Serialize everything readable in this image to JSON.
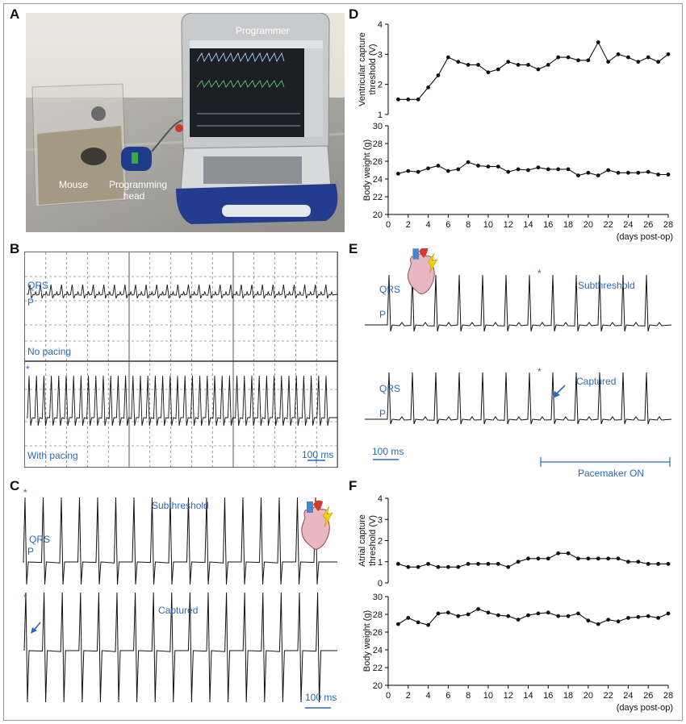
{
  "panels": {
    "a": {
      "letter": "A",
      "labels": {
        "programmer": "Programmer",
        "mouse": "Mouse",
        "programming_head": "Programming head"
      }
    },
    "b": {
      "letter": "B",
      "labels": {
        "qrs": "QRS",
        "p": "P",
        "no_pacing": "No pacing",
        "star": "*",
        "with_pacing": "With pacing",
        "scale": "100 ms"
      }
    },
    "c": {
      "letter": "C",
      "labels": {
        "star1": "*",
        "qrs": "QRS",
        "p": "P",
        "subthreshold": "Subthreshold",
        "star2": "*",
        "captured": "Captured",
        "scale": "100 ms"
      }
    },
    "d": {
      "letter": "D"
    },
    "e": {
      "letter": "E",
      "labels": {
        "qrs1": "QRS",
        "p1": "P",
        "star1": "*",
        "subthreshold": "Subthreshold",
        "qrs2": "QRS",
        "p2": "P",
        "star2": "*",
        "captured": "Captured",
        "scale": "100 ms",
        "pacemaker": "Pacemaker ON"
      }
    },
    "f": {
      "letter": "F"
    }
  },
  "colors": {
    "accent_blue": "#2a6ab8",
    "line": "#111111",
    "lightning": "#f5d400",
    "heart": "#e87a6a"
  },
  "chart_data": [
    {
      "id": "D-top",
      "type": "line",
      "ylabel": "Ventricular capture threshold (V)",
      "x": [
        1,
        2,
        3,
        4,
        5,
        6,
        7,
        8,
        9,
        10,
        11,
        12,
        13,
        14,
        15,
        16,
        17,
        18,
        19,
        20,
        21,
        22,
        23,
        24,
        25,
        26,
        27,
        28
      ],
      "values": [
        1.5,
        1.5,
        1.5,
        1.9,
        2.3,
        2.9,
        2.75,
        2.65,
        2.65,
        2.4,
        2.5,
        2.75,
        2.65,
        2.65,
        2.5,
        2.65,
        2.9,
        2.9,
        2.8,
        2.8,
        3.4,
        2.75,
        3.0,
        2.9,
        2.75,
        2.9,
        2.75,
        3.0
      ],
      "ylim": [
        1,
        4
      ],
      "yticks": [
        1,
        2,
        3,
        4
      ]
    },
    {
      "id": "D-bottom",
      "type": "line",
      "ylabel": "Body weight (g)",
      "xlabel": "(days post-op)",
      "x": [
        1,
        2,
        3,
        4,
        5,
        6,
        7,
        8,
        9,
        10,
        11,
        12,
        13,
        14,
        15,
        16,
        17,
        18,
        19,
        20,
        21,
        22,
        23,
        24,
        25,
        26,
        27,
        28
      ],
      "values": [
        24.6,
        24.9,
        24.8,
        25.2,
        25.5,
        24.9,
        25.1,
        25.9,
        25.5,
        25.4,
        25.4,
        24.8,
        25.1,
        25.0,
        25.3,
        25.1,
        25.1,
        25.1,
        24.4,
        24.7,
        24.4,
        25.0,
        24.7,
        24.7,
        24.7,
        24.8,
        24.5,
        24.5
      ],
      "ylim": [
        20,
        30
      ],
      "yticks": [
        20,
        22,
        24,
        26,
        28,
        30
      ],
      "xticks": [
        0,
        2,
        4,
        6,
        8,
        10,
        12,
        14,
        16,
        18,
        20,
        22,
        24,
        26,
        28
      ]
    },
    {
      "id": "F-top",
      "type": "line",
      "ylabel": "Atrial capture threshold (V)",
      "x": [
        1,
        2,
        3,
        4,
        5,
        6,
        7,
        8,
        9,
        10,
        11,
        12,
        13,
        14,
        15,
        16,
        17,
        18,
        19,
        20,
        21,
        22,
        23,
        24,
        25,
        26,
        27,
        28
      ],
      "values": [
        0.9,
        0.75,
        0.75,
        0.9,
        0.75,
        0.75,
        0.75,
        0.9,
        0.9,
        0.9,
        0.9,
        0.75,
        1.0,
        1.15,
        1.15,
        1.15,
        1.4,
        1.4,
        1.15,
        1.15,
        1.15,
        1.15,
        1.15,
        1.0,
        1.0,
        0.9,
        0.9,
        0.9
      ],
      "ylim": [
        0,
        4
      ],
      "yticks": [
        0,
        1,
        2,
        3,
        4
      ]
    },
    {
      "id": "F-bottom",
      "type": "line",
      "ylabel": "Body weight (g)",
      "xlabel": "(days post-op)",
      "x": [
        1,
        2,
        3,
        4,
        5,
        6,
        7,
        8,
        9,
        10,
        11,
        12,
        13,
        14,
        15,
        16,
        17,
        18,
        19,
        20,
        21,
        22,
        23,
        24,
        25,
        26,
        27,
        28
      ],
      "values": [
        26.9,
        27.6,
        27.1,
        26.8,
        28.1,
        28.2,
        27.8,
        28.0,
        28.6,
        28.2,
        27.9,
        27.8,
        27.4,
        27.9,
        28.1,
        28.2,
        27.8,
        27.8,
        28.1,
        27.3,
        26.9,
        27.4,
        27.2,
        27.6,
        27.7,
        27.8,
        27.6,
        28.1
      ],
      "ylim": [
        20,
        30
      ],
      "yticks": [
        20,
        22,
        24,
        26,
        28,
        30
      ],
      "xticks": [
        0,
        2,
        4,
        6,
        8,
        10,
        12,
        14,
        16,
        18,
        20,
        22,
        24,
        26,
        28
      ]
    }
  ]
}
